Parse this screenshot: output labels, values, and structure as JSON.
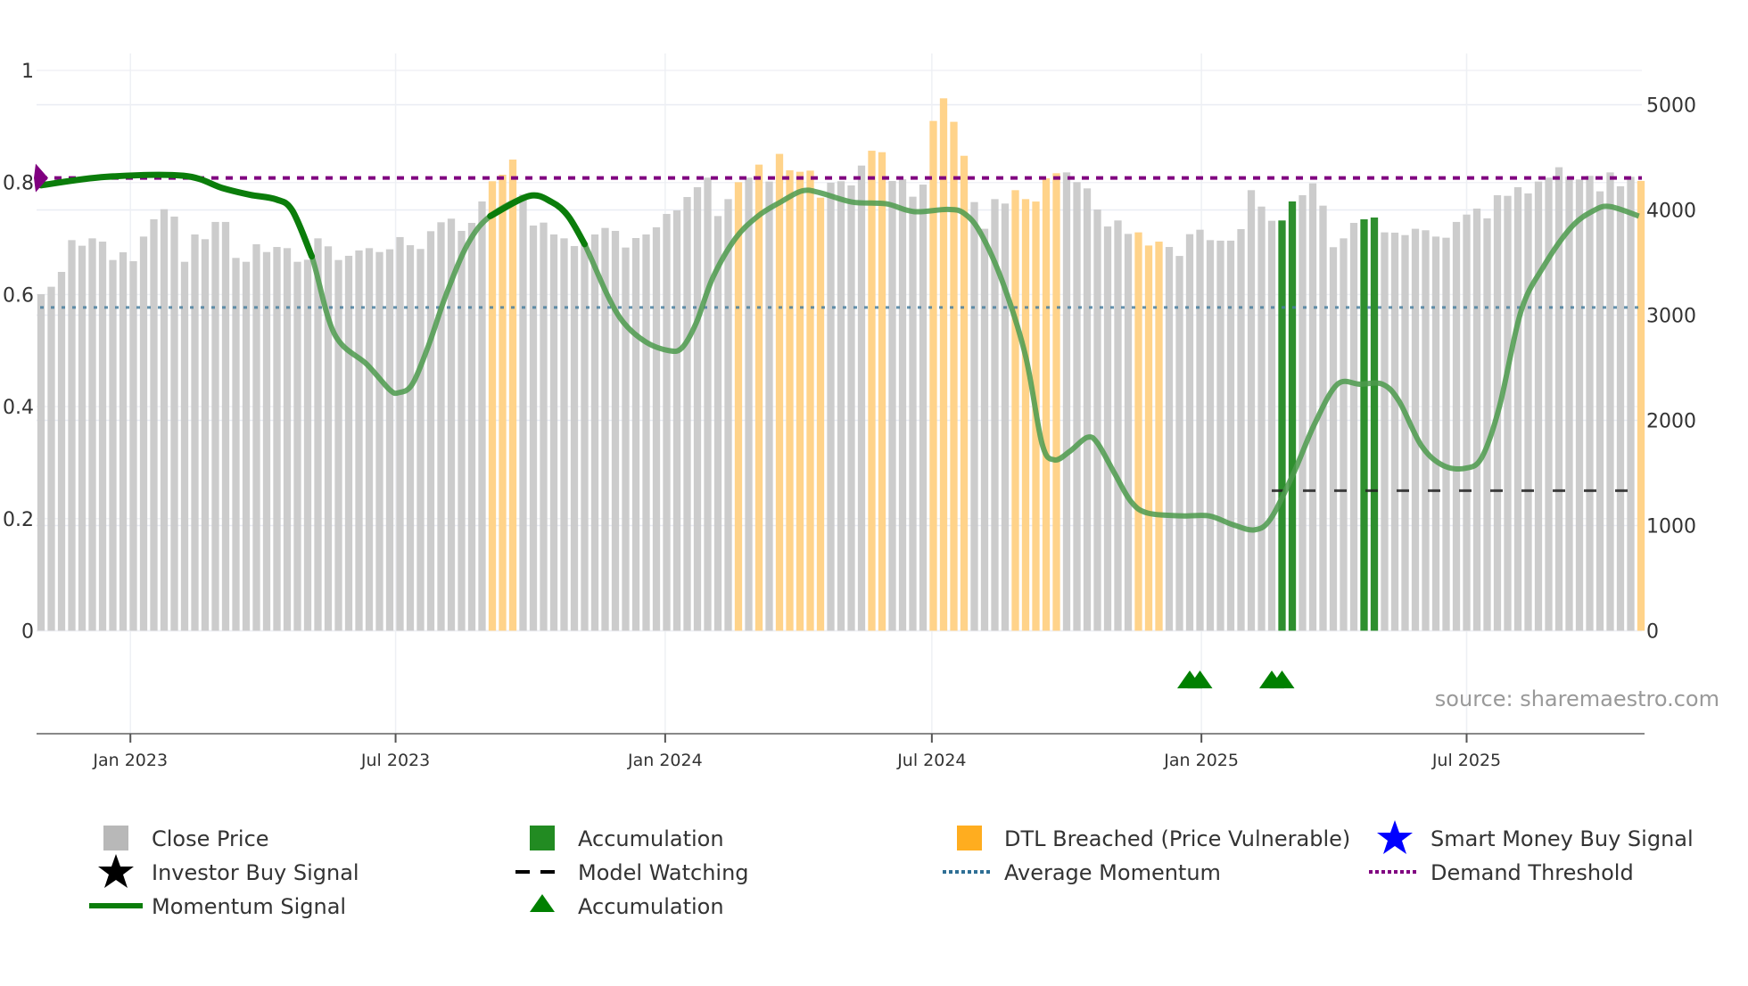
{
  "chart_data": {
    "type": "bar",
    "title": "",
    "x_start_date": "2022-11-01",
    "x_interval_days": 7,
    "x_ticks": [
      "Jan 2023",
      "Jul 2023",
      "Jan 2024",
      "Jul 2024",
      "Jan 2025",
      "Jul 2025"
    ],
    "x_tick_dates": [
      "2023-01-01",
      "2023-07-01",
      "2024-01-01",
      "2024-07-01",
      "2025-01-01",
      "2025-07-01"
    ],
    "y_left": {
      "ticks": [
        "0",
        "0.2",
        "0.4",
        "0.6",
        "0.8",
        "1"
      ],
      "tick_values": [
        0,
        0.2,
        0.4,
        0.6,
        0.8,
        1
      ],
      "range": [
        -0.18,
        1.0
      ]
    },
    "y_right": {
      "ticks": [
        "0",
        "1000",
        "2000",
        "3000",
        "4000",
        "5000"
      ],
      "tick_values": [
        0,
        1000,
        2000,
        3000,
        4000,
        5000
      ],
      "range": [
        0,
        5000
      ]
    },
    "close_price": [
      3199,
      3270,
      3411,
      3713,
      3660,
      3730,
      3699,
      3524,
      3598,
      3513,
      3747,
      3911,
      4007,
      3937,
      3507,
      3767,
      3722,
      3886,
      3886,
      3544,
      3507,
      3674,
      3600,
      3648,
      3637,
      3507,
      3527,
      3730,
      3654,
      3524,
      3564,
      3615,
      3637,
      3600,
      3626,
      3742,
      3665,
      3629,
      3798,
      3883,
      3917,
      3801,
      3877,
      4081,
      4273,
      4335,
      4479,
      4146,
      3852,
      3880,
      3767,
      3730,
      3657,
      3685,
      3767,
      3829,
      3801,
      3643,
      3733,
      3767,
      3835,
      3962,
      3996,
      4123,
      4216,
      4307,
      3942,
      4103,
      4264,
      4307,
      4431,
      4270,
      4533,
      4377,
      4363,
      4374,
      4117,
      4259,
      4273,
      4233,
      4422,
      4563,
      4549,
      4275,
      4292,
      4126,
      4241,
      4846,
      5061,
      4838,
      4515,
      4075,
      3821,
      4103,
      4061,
      4188,
      4103,
      4080,
      4301,
      4349,
      4357,
      4264,
      4205,
      4004,
      3843,
      3900,
      3772,
      3787,
      3662,
      3699,
      3648,
      3563,
      3770,
      3812,
      3713,
      3708,
      3708,
      3818,
      4188,
      4032,
      3897,
      3900,
      4081,
      4140,
      4253,
      4041,
      3646,
      3730,
      3877,
      3911,
      3928,
      3787,
      3784,
      3761,
      3821,
      3807,
      3747,
      3736,
      3886,
      3956,
      4013,
      3920,
      4140,
      4134,
      4216,
      4157,
      4270,
      4307,
      4406,
      4315,
      4290,
      4324,
      4177,
      4357,
      4225,
      4315,
      4276
    ],
    "bar_status": "ccccccccccccccccccccccccccccccccccccccccccccdddcccccccccccccccccccccdcdcdddddccccddccccdddd ccccdddddcccccccddd cccccccccccaacccccca acccccccccccccccccccccccccddddcdcdcdc",
    "momentum_signal": [
      [
        0,
        0.795
      ],
      [
        6.3,
        0.81
      ],
      [
        13.9,
        0.812
      ],
      [
        17.7,
        0.79
      ],
      [
        20.4,
        0.778
      ],
      [
        22.9,
        0.77
      ],
      [
        24.5,
        0.75
      ],
      [
        26.4,
        0.668
      ],
      [
        28.6,
        0.53
      ],
      [
        31.8,
        0.475
      ],
      [
        34,
        0.43
      ],
      [
        34.9,
        0.425
      ],
      [
        36.2,
        0.44
      ],
      [
        37.8,
        0.51
      ],
      [
        39.5,
        0.6
      ],
      [
        41.6,
        0.69
      ],
      [
        43.8,
        0.74
      ],
      [
        47.6,
        0.776
      ],
      [
        49.8,
        0.765
      ],
      [
        51.4,
        0.74
      ],
      [
        53,
        0.69
      ],
      [
        55.2,
        0.6
      ],
      [
        56.8,
        0.55
      ],
      [
        59,
        0.515
      ],
      [
        61.2,
        0.5
      ],
      [
        62.5,
        0.505
      ],
      [
        63.9,
        0.55
      ],
      [
        65.5,
        0.63
      ],
      [
        67.7,
        0.7
      ],
      [
        69.9,
        0.74
      ],
      [
        72.1,
        0.765
      ],
      [
        74.2,
        0.785
      ],
      [
        75.9,
        0.782
      ],
      [
        79.1,
        0.765
      ],
      [
        82.4,
        0.762
      ],
      [
        85.1,
        0.748
      ],
      [
        88.4,
        0.752
      ],
      [
        90,
        0.745
      ],
      [
        91.6,
        0.71
      ],
      [
        93.8,
        0.62
      ],
      [
        96,
        0.49
      ],
      [
        97.6,
        0.334
      ],
      [
        98.8,
        0.305
      ],
      [
        100.3,
        0.32
      ],
      [
        102,
        0.345
      ],
      [
        103,
        0.335
      ],
      [
        104.7,
        0.28
      ],
      [
        106.3,
        0.23
      ],
      [
        107.9,
        0.21
      ],
      [
        111.2,
        0.205
      ],
      [
        113.9,
        0.205
      ],
      [
        116.1,
        0.19
      ],
      [
        118.3,
        0.18
      ],
      [
        119.9,
        0.2
      ],
      [
        122.1,
        0.28
      ],
      [
        124.2,
        0.37
      ],
      [
        126.4,
        0.44
      ],
      [
        128.6,
        0.44
      ],
      [
        130.8,
        0.44
      ],
      [
        132.4,
        0.41
      ],
      [
        134.6,
        0.33
      ],
      [
        136.7,
        0.295
      ],
      [
        138.9,
        0.29
      ],
      [
        140.5,
        0.31
      ],
      [
        142.2,
        0.4
      ],
      [
        144.3,
        0.57
      ],
      [
        146.5,
        0.65
      ],
      [
        149.2,
        0.72
      ],
      [
        151.4,
        0.75
      ],
      [
        153,
        0.757
      ],
      [
        155.8,
        0.74
      ]
    ],
    "momentum_strong_ranges": [
      [
        0,
        27
      ],
      [
        42,
        53
      ]
    ],
    "average_momentum": 0.577,
    "demand_threshold": 0.808,
    "demand_marker": {
      "index": 0,
      "value": 0.808
    },
    "model_watching": {
      "value": 0.25,
      "from_index": 120
    },
    "accumulation_markers": {
      "indices": [
        112,
        113,
        120,
        121
      ],
      "value": -0.09
    },
    "colors": {
      "close": "#c9c9c9",
      "accumulation": "#2e8f2e",
      "dtl": "#ffd38a",
      "momentum": "#0b7d0b",
      "momentum_faded": "#4c9a4c",
      "average": "#4a7f9f",
      "threshold": "#800080",
      "watching": "#222222",
      "triangle": "#008000"
    }
  },
  "source": "source: sharemaestro.com",
  "legend": [
    {
      "label": "Close Price",
      "icon": "gray-square"
    },
    {
      "label": "Accumulation",
      "icon": "green-square"
    },
    {
      "label": "DTL Breached (Price Vulnerable)",
      "icon": "orange-square"
    },
    {
      "label": "Smart Money Buy Signal",
      "icon": "blue-star"
    },
    {
      "label": "Investor Buy Signal",
      "icon": "black-star"
    },
    {
      "label": "Model Watching",
      "icon": "black-dash"
    },
    {
      "label": "Average Momentum",
      "icon": "blue-dotted"
    },
    {
      "label": "Demand Threshold",
      "icon": "purple-dotted"
    },
    {
      "label": "Momentum Signal",
      "icon": "green-line"
    },
    {
      "label": "Accumulation",
      "icon": "green-triangle"
    }
  ]
}
